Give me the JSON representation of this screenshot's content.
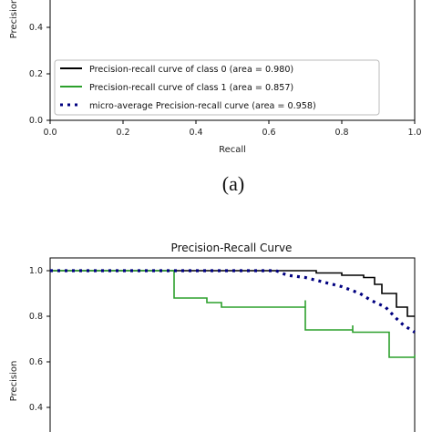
{
  "caption": "(a)",
  "chart_data": [
    {
      "type": "line",
      "title": "",
      "xlabel": "Recall",
      "ylabel": "Precision",
      "xlim": [
        0.0,
        1.0
      ],
      "ylim": [
        0.0,
        1.05
      ],
      "x_ticks": [
        "0.0",
        "0.2",
        "0.4",
        "0.6",
        "0.8",
        "1.0"
      ],
      "y_ticks": [
        "0.0",
        "0.2",
        "0.4"
      ],
      "legend_position": "lower-left",
      "series": [
        {
          "name": "Precision-recall curve of class 0 (area = 0.980)",
          "color": "#000000",
          "style": "solid",
          "points": []
        },
        {
          "name": "Precision-recall curve of class 1 (area = 0.857)",
          "color": "#2ca02c",
          "style": "solid",
          "points": []
        },
        {
          "name": "micro-average Precision-recall curve (area = 0.958)",
          "color": "#000080",
          "style": "dotted",
          "points": []
        }
      ]
    },
    {
      "type": "line",
      "title": "Precision-Recall Curve",
      "xlabel": "",
      "ylabel": "Precision",
      "xlim": [
        0.0,
        1.0
      ],
      "ylim": [
        0.3,
        1.05
      ],
      "x_ticks": [],
      "y_ticks": [
        "0.4",
        "0.6",
        "0.8",
        "1.0"
      ],
      "series": [
        {
          "color": "#000000",
          "style": "solid",
          "points": [
            [
              0,
              1
            ],
            [
              0.73,
              1
            ],
            [
              0.73,
              0.99
            ],
            [
              0.8,
              0.99
            ],
            [
              0.8,
              0.98
            ],
            [
              0.86,
              0.98
            ],
            [
              0.86,
              0.97
            ],
            [
              0.89,
              0.97
            ],
            [
              0.89,
              0.94
            ],
            [
              0.91,
              0.94
            ],
            [
              0.91,
              0.9
            ],
            [
              0.95,
              0.9
            ],
            [
              0.95,
              0.84
            ],
            [
              0.98,
              0.84
            ],
            [
              0.98,
              0.8
            ],
            [
              1.0,
              0.8
            ]
          ]
        },
        {
          "color": "#2ca02c",
          "style": "solid",
          "points": [
            [
              0,
              1
            ],
            [
              0.34,
              1
            ],
            [
              0.34,
              0.88
            ],
            [
              0.43,
              0.88
            ],
            [
              0.43,
              0.86
            ],
            [
              0.47,
              0.86
            ],
            [
              0.47,
              0.84
            ],
            [
              0.7,
              0.84
            ],
            [
              0.7,
              0.87
            ],
            [
              0.7,
              0.74
            ],
            [
              0.83,
              0.74
            ],
            [
              0.83,
              0.76
            ],
            [
              0.83,
              0.73
            ],
            [
              0.93,
              0.73
            ],
            [
              0.93,
              0.62
            ],
            [
              1.0,
              0.62
            ],
            [
              1.0,
              0.63
            ]
          ]
        },
        {
          "color": "#000080",
          "style": "dotted",
          "points": [
            [
              0,
              1
            ],
            [
              0.62,
              1
            ],
            [
              0.65,
              0.98
            ],
            [
              0.7,
              0.97
            ],
            [
              0.75,
              0.95
            ],
            [
              0.8,
              0.93
            ],
            [
              0.85,
              0.9
            ],
            [
              0.88,
              0.87
            ],
            [
              0.92,
              0.84
            ],
            [
              0.95,
              0.79
            ],
            [
              0.97,
              0.76
            ],
            [
              1.0,
              0.73
            ]
          ]
        }
      ]
    }
  ]
}
